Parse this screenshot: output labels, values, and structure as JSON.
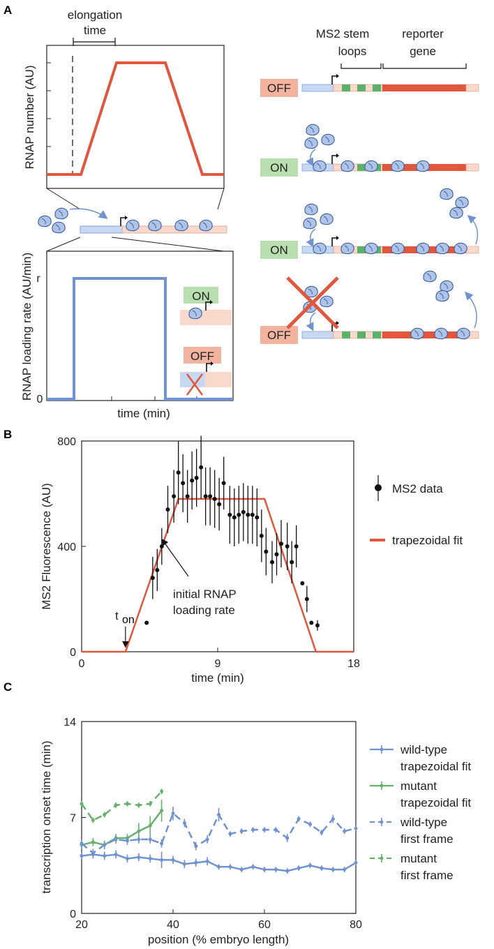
{
  "colors": {
    "orange": "#e0573e",
    "blue": "#6f93d0",
    "green": "#66b16c",
    "greenBox": "#b9deb0",
    "redBox": "#f2b39f",
    "lightBlue": "#c9d8f2",
    "lightPink": "#f8d9cc",
    "stemGreen": "#5bb06a"
  },
  "panelA": {
    "letter": "A",
    "elongation": "elongation\ntime",
    "rnap_number_label": "RNAP number (AU)",
    "loading_rate_label": "RNAP loading rate (AU/min)",
    "r_label": "r",
    "zero_label": "0",
    "time_label": "time (min)",
    "inset_on": "ON",
    "inset_off": "OFF",
    "ms2_label": "MS2 stem\nloops",
    "reporter_label": "reporter\ngene",
    "states": [
      "OFF",
      "ON",
      "ON",
      "OFF"
    ]
  },
  "panelB": {
    "letter": "B",
    "ylabel": "MS2 Fluorescence (AU)",
    "xlabel": "time (min)",
    "annotation": "initial RNAP\nloading rate",
    "ton_t": "t",
    "ton_sub": "on",
    "legend": [
      {
        "label": "MS2 data",
        "kind": "marker"
      },
      {
        "label": "trapezoidal fit",
        "kind": "line"
      }
    ],
    "chart_data": {
      "type": "scatter",
      "xlim": [
        0,
        18
      ],
      "ylim": [
        0,
        800
      ],
      "xticks": [
        0,
        9,
        18
      ],
      "yticks": [
        0,
        400,
        800
      ],
      "ton": 2.9,
      "fit": {
        "x": [
          0,
          2.9,
          6.4,
          12.1,
          15.5,
          18
        ],
        "y": [
          0,
          0,
          580,
          580,
          0,
          0
        ]
      },
      "x": [
        4.3,
        4.7,
        5.0,
        5.3,
        5.7,
        6.1,
        6.4,
        6.7,
        7.0,
        7.3,
        7.6,
        7.9,
        8.2,
        8.5,
        8.8,
        9.1,
        9.4,
        9.8,
        10.1,
        10.4,
        10.7,
        11.0,
        11.3,
        11.6,
        11.9,
        12.2,
        12.6,
        12.9,
        13.2,
        13.6,
        13.9,
        14.2,
        14.6,
        14.9,
        15.2,
        15.6
      ],
      "y": [
        110,
        280,
        310,
        400,
        540,
        590,
        680,
        640,
        590,
        650,
        660,
        700,
        590,
        590,
        580,
        560,
        640,
        520,
        510,
        520,
        530,
        520,
        520,
        510,
        440,
        380,
        340,
        370,
        410,
        400,
        340,
        400,
        260,
        200,
        110,
        100
      ],
      "err": [
        0,
        80,
        80,
        70,
        90,
        100,
        120,
        110,
        100,
        110,
        110,
        120,
        110,
        110,
        110,
        100,
        100,
        110,
        110,
        110,
        110,
        110,
        110,
        110,
        100,
        90,
        80,
        80,
        90,
        90,
        80,
        80,
        0,
        50,
        0,
        20
      ]
    }
  },
  "panelC": {
    "letter": "C",
    "ylabel": "transcription onset time (min)",
    "xlabel": "position (% embryo length)",
    "legend": [
      {
        "label1": "wild-type",
        "label2": "trapezoidal fit",
        "color": "#6f93d0",
        "dash": false
      },
      {
        "label1": "mutant",
        "label2": "trapezoidal fit",
        "color": "#66b16c",
        "dash": false
      },
      {
        "label1": "wild-type",
        "label2": "first frame",
        "color": "#6f93d0",
        "dash": true
      },
      {
        "label1": "mutant",
        "label2": "first frame",
        "color": "#66b16c",
        "dash": true
      }
    ],
    "chart_data": {
      "type": "line",
      "xlim": [
        20,
        80
      ],
      "ylim": [
        0,
        14
      ],
      "xticks": [
        20,
        40,
        60,
        80
      ],
      "yticks": [
        0,
        7,
        14
      ],
      "series": [
        {
          "name": "wild-type trapezoidal fit",
          "color": "#6f93d0",
          "dash": false,
          "x": [
            20,
            22.5,
            25,
            27.5,
            30,
            32.5,
            35,
            37.5,
            40,
            42.5,
            45,
            47.5,
            50,
            52.5,
            55,
            57.5,
            60,
            62.5,
            65,
            67.5,
            70,
            72.5,
            75,
            77.5,
            80
          ],
          "y": [
            4.2,
            4.3,
            4.2,
            4.3,
            4.0,
            4.1,
            4.0,
            3.9,
            3.9,
            3.6,
            3.7,
            3.8,
            3.4,
            3.4,
            3.2,
            3.4,
            3.2,
            3.2,
            3.1,
            3.3,
            3.5,
            3.3,
            3.2,
            3.2,
            3.7
          ],
          "err": [
            0.3,
            0.3,
            0.3,
            0.3,
            0.3,
            0.3,
            0.3,
            0.6,
            0.3,
            0.3,
            0.3,
            0.3,
            0.2,
            0.2,
            0.2,
            0.2,
            0.2,
            0.2,
            0.2,
            0.2,
            0.2,
            0.2,
            0.2,
            0.2,
            0.2
          ]
        },
        {
          "name": "mutant trapezoidal fit",
          "color": "#66b16c",
          "dash": false,
          "x": [
            20,
            22.5,
            25,
            27.5,
            30,
            32.5,
            35,
            37.5
          ],
          "y": [
            5.0,
            5.2,
            5.0,
            5.5,
            5.5,
            6.0,
            6.4,
            7.5
          ],
          "err": [
            0.3,
            0.3,
            0.3,
            0.3,
            0.3,
            0.6,
            0.7,
            0.8
          ]
        },
        {
          "name": "wild-type first frame",
          "color": "#6f93d0",
          "dash": true,
          "x": [
            20,
            22.5,
            25,
            27.5,
            30,
            32.5,
            35,
            37.5,
            40,
            42.5,
            45,
            47.5,
            50,
            52.5,
            55,
            57.5,
            60,
            62.5,
            65,
            67.5,
            70,
            72.5,
            75,
            77.5,
            80
          ],
          "y": [
            5.1,
            4.4,
            5.0,
            5.4,
            5.3,
            5.4,
            5.4,
            5.1,
            7.3,
            6.6,
            4.9,
            5.4,
            7.2,
            5.8,
            6.0,
            6.1,
            6.1,
            6.1,
            5.5,
            6.9,
            6.5,
            5.9,
            6.9,
            6.0,
            6.2
          ],
          "err": [
            0.3,
            0.3,
            0.3,
            0.3,
            0.3,
            0.3,
            0.3,
            0.3,
            0.5,
            0.3,
            0.3,
            0.3,
            0.5,
            0.2,
            0.2,
            0.2,
            0.2,
            0.2,
            0.3,
            0.2,
            0.2,
            0.2,
            0.3,
            0.2,
            0.2
          ]
        },
        {
          "name": "mutant first frame",
          "color": "#66b16c",
          "dash": true,
          "x": [
            20,
            22.5,
            25,
            27.5,
            30,
            32.5,
            35,
            37.5
          ],
          "y": [
            8.0,
            6.8,
            7.2,
            7.9,
            8.0,
            7.9,
            8.0,
            8.9
          ],
          "err": [
            0.2,
            0.2,
            0.2,
            0.2,
            0.2,
            0.2,
            0.2,
            0.2
          ]
        }
      ]
    }
  }
}
